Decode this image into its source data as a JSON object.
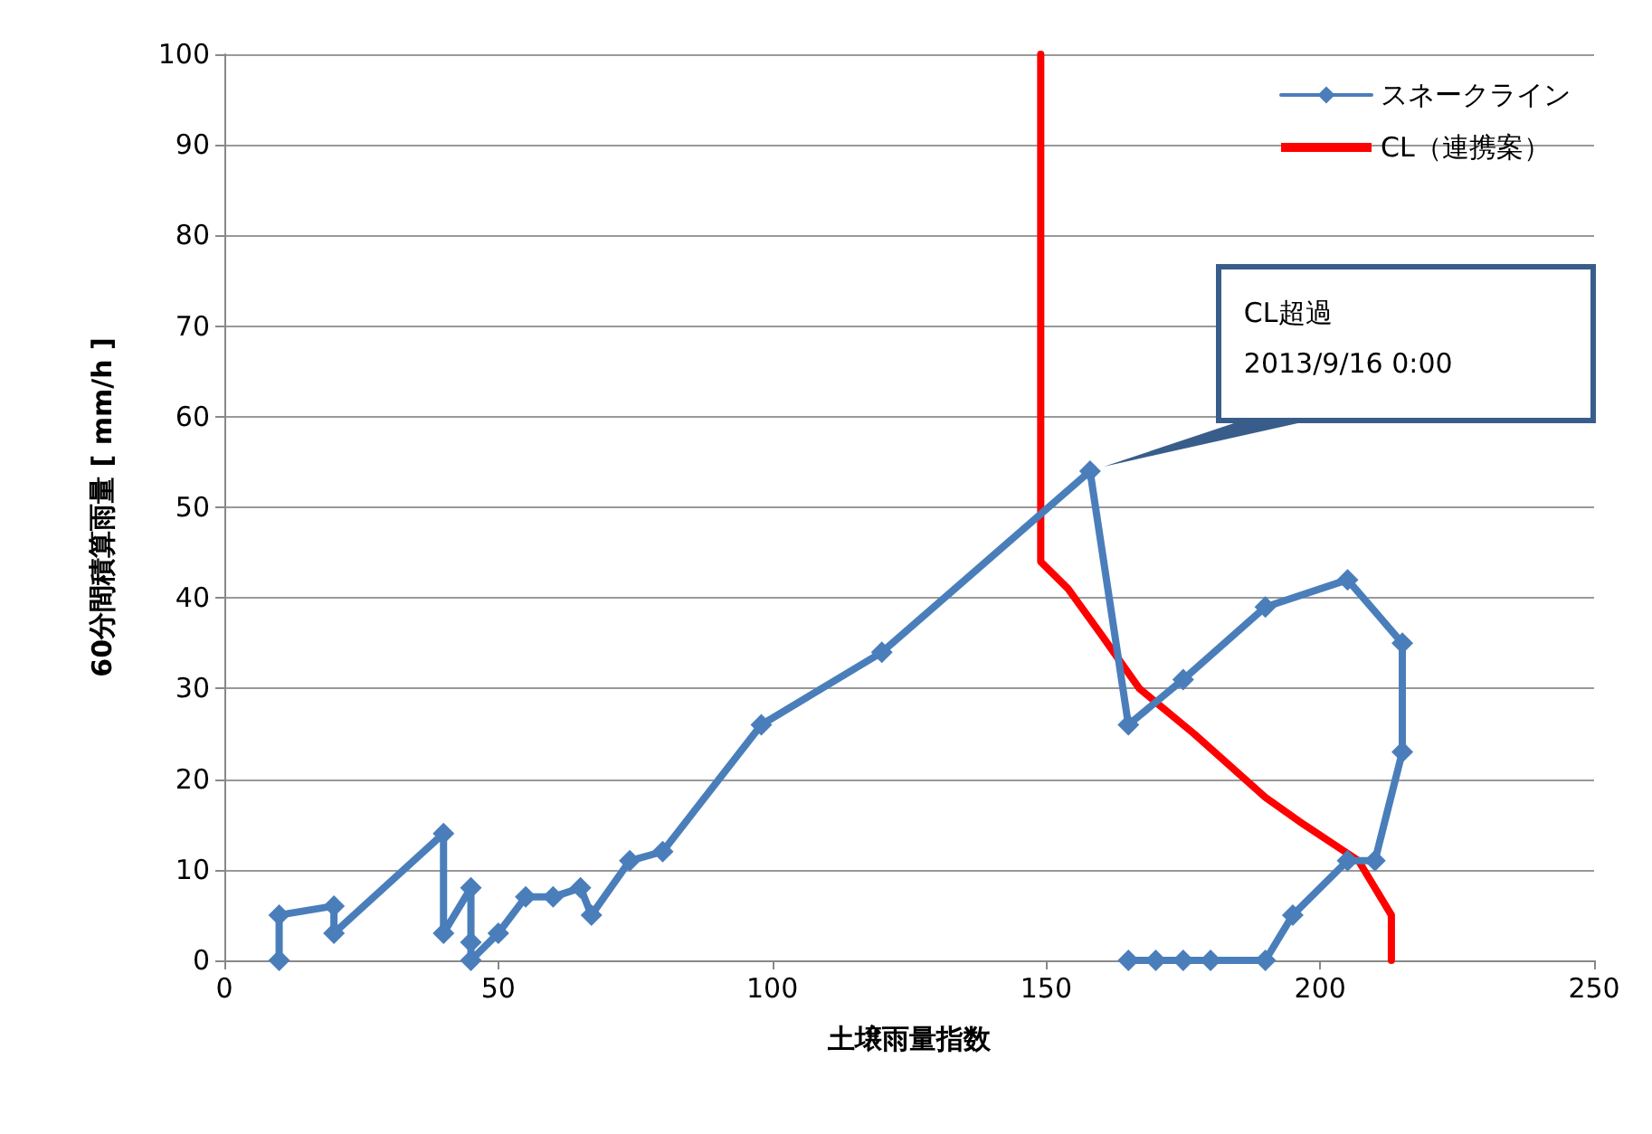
{
  "chart_data": {
    "type": "line",
    "xlabel": "土壌雨量指数",
    "ylabel": "60分間積算雨量 [ mm/h ]",
    "xlim": [
      0,
      250
    ],
    "xticks": [
      0,
      50,
      100,
      150,
      200,
      250
    ],
    "ylim": [
      0,
      100
    ],
    "yticks": [
      0,
      10,
      20,
      30,
      40,
      50,
      60,
      70,
      80,
      90,
      100
    ],
    "grid": "y",
    "legend": "top right",
    "series": [
      {
        "name": "スネークライン",
        "color": "#4a7ebb",
        "marker": "diamond",
        "line_style": "solid",
        "x": [
          10,
          10,
          20,
          20,
          40,
          40,
          45,
          45,
          45,
          50,
          55,
          60,
          65,
          67,
          74,
          80,
          98,
          120,
          158,
          165,
          175,
          190,
          205,
          215,
          215,
          210,
          205,
          195,
          190,
          180,
          175,
          170,
          165
        ],
        "values": [
          0,
          5,
          6,
          3,
          14,
          3,
          8,
          2,
          0,
          3,
          7,
          7,
          8,
          5,
          11,
          12,
          26,
          34,
          54,
          26,
          31,
          39,
          42,
          35,
          23,
          11,
          11,
          5,
          0,
          0,
          0,
          0,
          0
        ]
      },
      {
        "name": "CL（連携案）",
        "color": "#ff0000",
        "marker": "none",
        "line_style": "solid",
        "x": [
          149,
          149,
          154,
          160,
          167,
          177,
          190,
          197,
          207,
          212,
          213,
          213
        ],
        "values": [
          100,
          44,
          41,
          36,
          30,
          25,
          18,
          15,
          11,
          6,
          5,
          0
        ]
      }
    ],
    "annotations": [
      {
        "text": "CL超過\n2013/9/16 0:00",
        "x": 158,
        "y": 54
      }
    ]
  }
}
